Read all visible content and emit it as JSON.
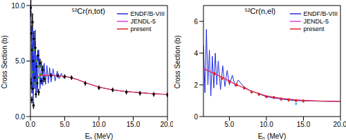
{
  "chart_data": [
    {
      "type": "line",
      "title": "⁵²Cr(n,tot)",
      "x_label": "Eₙ (MeV)",
      "y_label": "Cross Section (b)",
      "xlim": [
        0,
        20
      ],
      "xticks": [
        {
          "value": 0,
          "label": "0.0"
        },
        {
          "value": 5,
          "label": "5.0"
        },
        {
          "value": 10,
          "label": "10.0"
        },
        {
          "value": 15,
          "label": "15.0"
        },
        {
          "value": 20,
          "label": "20.0"
        }
      ],
      "ylim": [
        0,
        10
      ],
      "yticks": [
        {
          "value": 0,
          "label": "0.0"
        },
        {
          "value": 5,
          "label": "5.0"
        },
        {
          "value": 10,
          "label": "10.0"
        }
      ],
      "legend": "upper right",
      "series": [
        {
          "type": "scatter",
          "color": "#000000",
          "marker": "circle",
          "x": [
            0.05,
            0.1,
            0.15,
            0.2,
            0.25,
            0.3,
            0.35,
            0.4,
            0.45,
            0.5,
            0.6,
            0.7,
            0.8,
            0.9,
            1.0,
            1.1,
            1.2,
            1.4,
            1.6,
            1.8,
            2.0,
            3,
            4,
            5,
            6,
            8,
            10,
            12,
            14,
            16,
            18,
            20
          ],
          "values": [
            9.8,
            3.0,
            7.5,
            1.5,
            6.0,
            8.5,
            2.5,
            5.0,
            1.0,
            7.0,
            3.5,
            6.2,
            2.0,
            4.5,
            3.0,
            5.5,
            2.2,
            4.8,
            3.2,
            4.2,
            3.4,
            3.7,
            3.7,
            3.6,
            3.5,
            3.0,
            2.6,
            2.4,
            2.2,
            2.1,
            2.0,
            1.95
          ],
          "errors": [
            0.8,
            0.5,
            0.7,
            0.3,
            0.6,
            0.8,
            0.4,
            0.5,
            0.3,
            0.7,
            0.4,
            0.6,
            0.3,
            0.5,
            0.4,
            0.5,
            0.3,
            0.4,
            0.3,
            0.4,
            0.3,
            0.2,
            0.2,
            0.2,
            0.2,
            0.2,
            0.2,
            0.2,
            0.2,
            0.2,
            0.2,
            0.2
          ]
        },
        {
          "type": "scatter",
          "color": "#20a020",
          "marker": "circle",
          "x": [
            0.3,
            0.5,
            0.7,
            0.9,
            1.1,
            1.3,
            1.5
          ],
          "values": [
            4.0,
            6.0,
            3.0,
            5.0,
            3.5,
            4.5,
            3.8
          ]
        },
        {
          "type": "line",
          "name": "ENDF/B-VIII",
          "color": "#1f2be0",
          "x": [
            0.1,
            0.2,
            0.3,
            0.4,
            0.5,
            0.6,
            0.7,
            0.8,
            0.9,
            1.0,
            1.2,
            1.4,
            1.6,
            1.8,
            2.0,
            2.2,
            2.4,
            2.6,
            2.8,
            3.0,
            3.3,
            3.6,
            3.9,
            4.2,
            4.5,
            4.8,
            5.2,
            6,
            7,
            8,
            9,
            10,
            12,
            14,
            16,
            18,
            20
          ],
          "values": [
            9.5,
            2.1,
            8.0,
            1.2,
            6.5,
            2.5,
            7.8,
            1.8,
            5.5,
            2.2,
            6.0,
            2.5,
            5.0,
            2.8,
            4.8,
            2.9,
            4.6,
            3.0,
            4.4,
            3.1,
            4.3,
            3.2,
            4.1,
            3.4,
            3.9,
            3.5,
            3.6,
            3.5,
            3.3,
            3.05,
            2.85,
            2.65,
            2.4,
            2.25,
            2.15,
            2.05,
            2.0
          ]
        },
        {
          "type": "line",
          "name": "JENDL-5",
          "color": "#e040e0",
          "x": [
            1,
            2,
            3,
            4,
            5,
            6,
            7,
            8,
            9,
            10,
            12,
            14,
            16,
            18,
            20
          ],
          "values": [
            3.6,
            3.8,
            3.75,
            3.7,
            3.6,
            3.5,
            3.3,
            3.05,
            2.85,
            2.65,
            2.4,
            2.25,
            2.15,
            2.05,
            2.0
          ]
        },
        {
          "type": "line",
          "name": "present",
          "color": "#e02020",
          "x": [
            1.3,
            2,
            3,
            4,
            5,
            6,
            7,
            8,
            9,
            10,
            12,
            14,
            16,
            18,
            20
          ],
          "values": [
            3.7,
            3.7,
            3.7,
            3.65,
            3.6,
            3.5,
            3.3,
            3.05,
            2.85,
            2.65,
            2.4,
            2.25,
            2.15,
            2.05,
            2.0
          ]
        }
      ]
    },
    {
      "type": "line",
      "title": "⁵²Cr(n,el)",
      "x_label": "Eₙ (MeV)",
      "y_label": "Cross Section (b)",
      "xlim": [
        1.5,
        20
      ],
      "xticks": [
        {
          "value": 5,
          "label": "5.0"
        },
        {
          "value": 10,
          "label": "10.0"
        },
        {
          "value": 15,
          "label": "15.0"
        },
        {
          "value": 20,
          "label": "20.0"
        }
      ],
      "ylim": [
        0,
        7
      ],
      "yticks": [
        0,
        2,
        4,
        6
      ],
      "legend": "upper right",
      "series": [
        {
          "type": "line",
          "name": "ENDF/B-VIII",
          "color": "#1f2be0",
          "x": [
            1.5,
            1.7,
            1.9,
            2.1,
            2.3,
            2.5,
            2.7,
            2.9,
            3.1,
            3.3,
            3.5,
            3.8,
            4.1,
            4.4,
            4.7,
            5.0,
            5.4,
            5.8,
            6.2,
            7,
            8,
            10,
            12,
            14,
            16,
            18,
            20
          ],
          "values": [
            4.5,
            1.5,
            5.5,
            2.0,
            4.2,
            1.3,
            3.8,
            1.8,
            4.0,
            2.0,
            3.5,
            1.7,
            3.2,
            1.9,
            2.9,
            2.0,
            2.6,
            1.9,
            2.3,
            1.85,
            1.6,
            1.25,
            1.1,
            1.0,
            0.98,
            0.96,
            0.95
          ]
        },
        {
          "type": "line",
          "name": "JENDL-5",
          "color": "#e040e0",
          "x": [
            1.5,
            2,
            3,
            4,
            5,
            6,
            7,
            8,
            9,
            10,
            12,
            14,
            16,
            18,
            20
          ],
          "values": [
            3.1,
            2.95,
            2.7,
            2.45,
            2.2,
            2.0,
            1.8,
            1.6,
            1.45,
            1.3,
            1.15,
            1.05,
            1.0,
            0.97,
            0.95
          ]
        },
        {
          "type": "line",
          "name": "present",
          "color": "#e02020",
          "x": [
            1.5,
            2,
            3,
            4,
            5,
            6,
            7,
            8,
            9,
            10,
            12,
            14,
            16,
            18,
            20
          ],
          "values": [
            3.0,
            2.9,
            2.7,
            2.5,
            2.25,
            2.0,
            1.8,
            1.6,
            1.45,
            1.3,
            1.15,
            1.05,
            1.0,
            0.97,
            0.95
          ]
        },
        {
          "type": "scatter",
          "color": "#e02020",
          "marker": "circle",
          "x": [
            3,
            4,
            5,
            6,
            7,
            8,
            9,
            10,
            11,
            12,
            13,
            14,
            15
          ],
          "values": [
            2.7,
            2.4,
            2.2,
            2.0,
            1.8,
            1.55,
            1.4,
            1.25,
            1.2,
            1.1,
            1.05,
            1.0,
            0.98
          ],
          "errors": [
            0.1,
            0.1,
            0.1,
            0.1,
            0.1,
            0.1,
            0.1,
            0.1,
            0.1,
            0.1,
            0.1,
            0.1,
            0.1
          ]
        },
        {
          "type": "scatter",
          "color": "#40c0f0",
          "marker": "circle",
          "x": [
            14
          ],
          "values": [
            0.8
          ]
        }
      ]
    }
  ]
}
